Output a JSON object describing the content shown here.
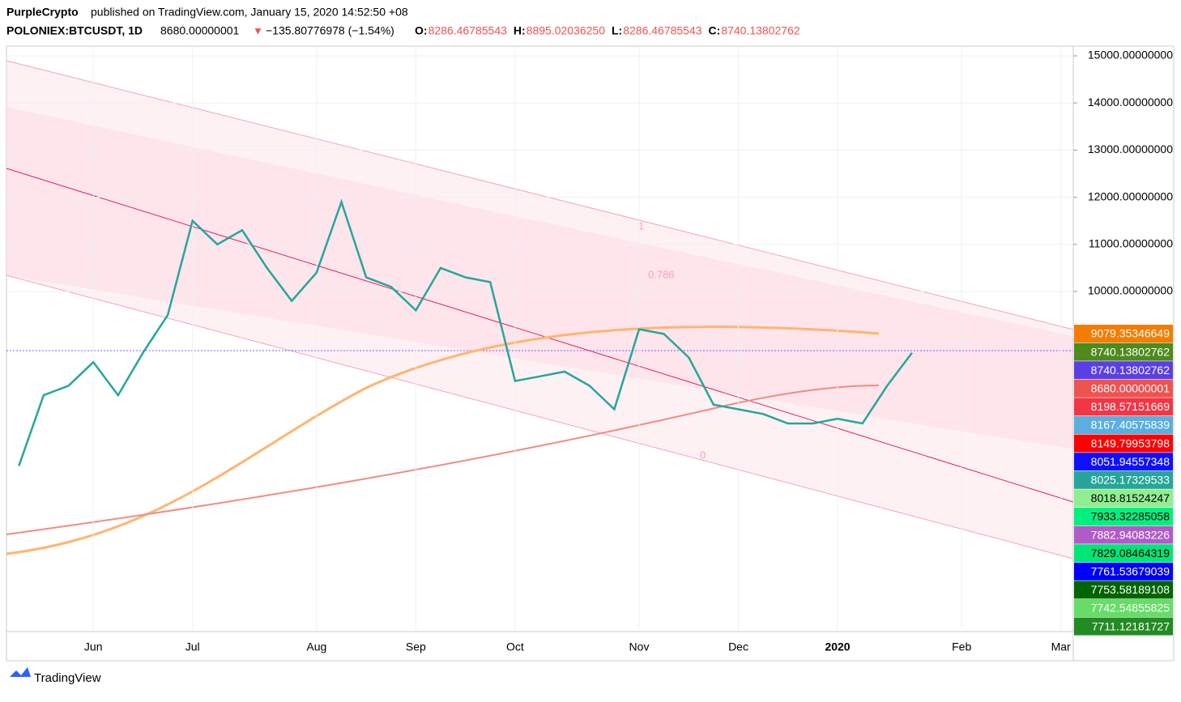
{
  "header": {
    "author": "PurpleCrypto",
    "published": "published on TradingView.com, January 15, 2020 14:52:50 +08",
    "symbol": "POLONIEX:BTCUSDT, 1D",
    "last": "8680.00000001",
    "arrow": "▼",
    "change": "−135.80776978 (−1.54%)",
    "ohlc": [
      {
        "label": "O:",
        "value": "8286.46785543"
      },
      {
        "label": "H:",
        "value": "8895.02036250"
      },
      {
        "label": "L:",
        "value": "8286.46785543"
      },
      {
        "label": "C:",
        "value": "8740.13802762"
      }
    ]
  },
  "chart_data": {
    "type": "line",
    "categories": [
      null,
      null,
      null,
      "Jun",
      null,
      null,
      null,
      "Jul",
      null,
      null,
      null,
      null,
      "Aug",
      null,
      null,
      null,
      "Sep",
      null,
      null,
      null,
      "Oct",
      null,
      null,
      null,
      null,
      "Nov",
      null,
      null,
      null,
      "Dec",
      null,
      null,
      null,
      "2020",
      null,
      null,
      null,
      null,
      "Feb",
      null,
      null,
      null,
      "Mar"
    ],
    "series": [
      {
        "name": "BTCUSDT",
        "color": "#26a69a",
        "values": [
          6300,
          7800,
          8000,
          8500,
          7800,
          8700,
          9500,
          11500,
          11000,
          11300,
          10500,
          9800,
          10400,
          11900,
          10300,
          10100,
          9600,
          10500,
          10300,
          10200,
          8100,
          8200,
          8300,
          8000,
          7500,
          9200,
          9100,
          8600,
          7600,
          7500,
          7400,
          7200,
          7200,
          7300,
          7200,
          8000,
          8700,
          null,
          null,
          null,
          null,
          null,
          null
        ]
      }
    ],
    "ylim": [
      2784,
      15206
    ],
    "yticks": [
      {
        "value": 10000,
        "label": "10000.00000000"
      },
      {
        "value": 11000,
        "label": "11000.00000000"
      },
      {
        "value": 12000,
        "label": "12000.00000000"
      },
      {
        "value": 13000,
        "label": "13000.00000000"
      },
      {
        "value": 14000,
        "label": "14000.00000000"
      },
      {
        "value": 15000,
        "label": "15000.00000000"
      }
    ],
    "grid": true,
    "annotations": [
      "1",
      "0.786",
      "0"
    ],
    "price_labels": [
      {
        "value": 9079.35346649,
        "color": "#f57c00"
      },
      {
        "value": 8740.13802762,
        "color": "#4e8a1c"
      },
      {
        "value": 8740.13802762,
        "color": "#5b3fe6"
      },
      {
        "value": 8680.00000001,
        "color": "#ef5350"
      },
      {
        "value": 8198.57151669,
        "color": "#f23645"
      },
      {
        "value": 8167.40575839,
        "color": "#5aaee0"
      },
      {
        "value": 8149.79953798,
        "color": "#ff0000"
      },
      {
        "value": 8051.94557348,
        "color": "#1010ff"
      },
      {
        "value": 8025.17329533,
        "color": "#26a69a"
      },
      {
        "value": 8018.81524247,
        "color": "#90ee90"
      },
      {
        "value": 7933.32285058,
        "color": "#00f080"
      },
      {
        "value": 7882.94083226,
        "color": "#b05cc8"
      },
      {
        "value": 7829.08464319,
        "color": "#00e676"
      },
      {
        "value": 7761.53679039,
        "color": "#0000ff"
      },
      {
        "value": 7753.58189108,
        "color": "#006400"
      },
      {
        "value": 7742.54855825,
        "color": "#66dd66"
      },
      {
        "value": 7711.12181727,
        "color": "#228b22"
      }
    ]
  },
  "footer": {
    "brand": "TradingView"
  }
}
